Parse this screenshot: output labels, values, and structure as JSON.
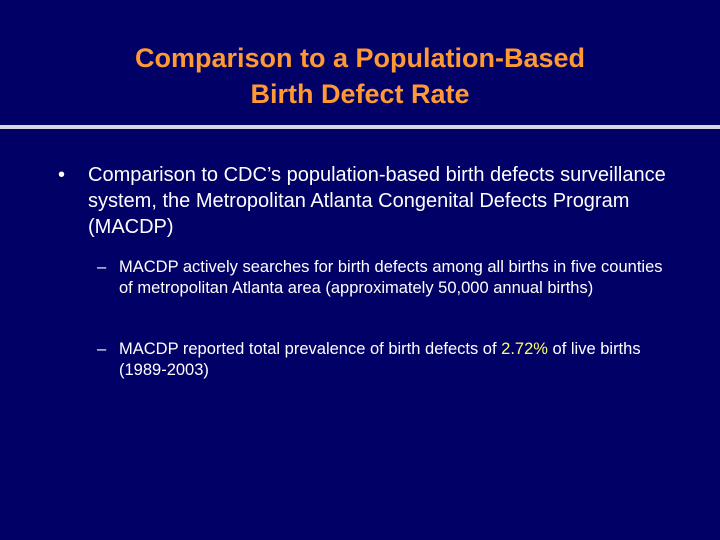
{
  "slide": {
    "title_line1": "Comparison to a Population-Based",
    "title_line2": "Birth Defect Rate",
    "colors": {
      "background": "#000066",
      "title": "#ff9933",
      "text": "#ffffff",
      "highlight": "#ffff66",
      "divider": "#d7d7e4"
    },
    "bullets": [
      {
        "marker": "•",
        "text": "Comparison to CDC’s population-based birth defects surveillance system, the Metropolitan Atlanta Congenital Defects Program (MACDP)",
        "sub_bullets": [
          {
            "marker": "–",
            "text": "MACDP actively searches for birth defects among all births in five counties of metropolitan Atlanta area (approximately 50,000 annual births)"
          },
          {
            "marker": "–",
            "text_before": "MACDP reported total prevalence of birth defects of ",
            "highlight": "2.72%",
            "text_after": " of live births (1989-2003)"
          }
        ]
      }
    ]
  }
}
